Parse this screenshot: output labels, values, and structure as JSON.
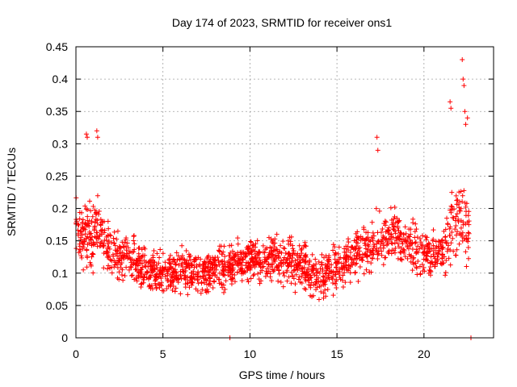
{
  "chart_data": {
    "type": "scatter",
    "title": "Day 174 of 2023, SRMTID for receiver ons1",
    "xlabel": "GPS time / hours",
    "ylabel": "SRMTID / TECUs",
    "xlim": [
      0,
      24
    ],
    "ylim": [
      0,
      0.45
    ],
    "xticks": [
      0,
      5,
      10,
      15,
      20
    ],
    "xtick_labels": [
      "0",
      "5",
      "10",
      "15",
      "20"
    ],
    "yticks": [
      0,
      0.05,
      0.1,
      0.15,
      0.2,
      0.25,
      0.3,
      0.35,
      0.4,
      0.45
    ],
    "ytick_labels": [
      "0",
      "0.05",
      "0.1",
      "0.15",
      "0.2",
      "0.25",
      "0.3",
      "0.35",
      "0.4",
      "0.45"
    ],
    "grid": true,
    "marker": "+",
    "series": [
      {
        "name": "SRMTID",
        "color": "#ff0000",
        "baseline": {
          "hours": [
            0,
            0.3,
            0.7,
            1.2,
            2,
            3,
            4,
            5,
            6,
            7,
            8,
            9,
            10,
            11,
            12,
            13,
            14,
            15,
            16,
            17,
            18,
            19,
            20,
            21,
            22,
            22.6
          ],
          "values": [
            0.17,
            0.16,
            0.16,
            0.17,
            0.13,
            0.12,
            0.11,
            0.1,
            0.105,
            0.1,
            0.105,
            0.11,
            0.12,
            0.125,
            0.12,
            0.11,
            0.09,
            0.11,
            0.13,
            0.14,
            0.16,
            0.14,
            0.13,
            0.14,
            0.2,
            0.16
          ]
        },
        "spread": {
          "hours": [
            0,
            1,
            2,
            5,
            10,
            14,
            16,
            17.5,
            19,
            21,
            22,
            22.6
          ],
          "values": [
            0.04,
            0.05,
            0.03,
            0.03,
            0.03,
            0.035,
            0.03,
            0.045,
            0.035,
            0.035,
            0.07,
            0.05
          ]
        },
        "notable_points": [
          {
            "x": 0.6,
            "y": 0.315
          },
          {
            "x": 0.65,
            "y": 0.31
          },
          {
            "x": 1.2,
            "y": 0.32
          },
          {
            "x": 1.25,
            "y": 0.31
          },
          {
            "x": 17.3,
            "y": 0.31
          },
          {
            "x": 17.35,
            "y": 0.29
          },
          {
            "x": 21.5,
            "y": 0.365
          },
          {
            "x": 21.55,
            "y": 0.355
          },
          {
            "x": 22.2,
            "y": 0.43
          },
          {
            "x": 22.25,
            "y": 0.4
          },
          {
            "x": 22.3,
            "y": 0.39
          },
          {
            "x": 22.35,
            "y": 0.35
          },
          {
            "x": 22.4,
            "y": 0.33
          },
          {
            "x": 22.5,
            "y": 0.34
          },
          {
            "x": 8.85,
            "y": 0.0
          },
          {
            "x": 22.7,
            "y": 0.0
          }
        ]
      }
    ]
  }
}
